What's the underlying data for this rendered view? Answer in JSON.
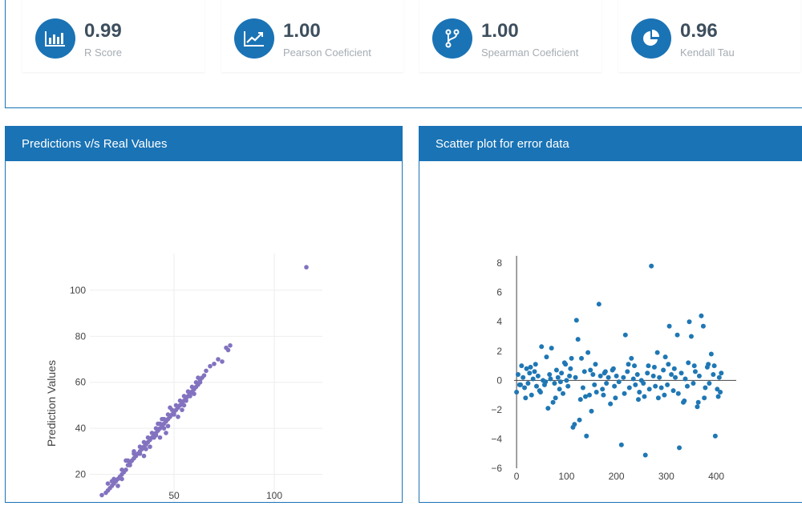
{
  "stats": [
    {
      "value": "0.99",
      "label": "R Score",
      "icon": "bar-chart-icon"
    },
    {
      "value": "1.00",
      "label": "Pearson Coeficient",
      "icon": "line-chart-icon"
    },
    {
      "value": "1.00",
      "label": "Spearman Coeficient",
      "icon": "fork-icon"
    },
    {
      "value": "0.96",
      "label": "Kendall Tau",
      "icon": "pie-chart-icon"
    }
  ],
  "colors": {
    "accent": "#1a73b5",
    "pred_points": "#8272bf",
    "error_points": "#1f77b4"
  },
  "panels": {
    "predictions": {
      "title": "Predictions v/s Real Values"
    },
    "errors": {
      "title": "Scatter plot for error data"
    }
  },
  "chart_data": [
    {
      "type": "scatter",
      "title": "Predictions v/s Real Values",
      "xlabel": "",
      "ylabel": "Prediction Values",
      "xlim": [
        8,
        124
      ],
      "ylim": [
        8,
        116
      ],
      "x_ticks": [
        50,
        100
      ],
      "y_ticks": [
        20,
        40,
        60,
        80,
        100
      ],
      "grid": true,
      "points": [
        [
          116,
          110
        ],
        [
          14,
          11
        ],
        [
          16,
          12
        ],
        [
          17,
          13
        ],
        [
          18,
          14
        ],
        [
          19,
          15
        ],
        [
          20,
          16
        ],
        [
          17,
          16
        ],
        [
          21,
          17
        ],
        [
          22,
          18
        ],
        [
          20,
          18
        ],
        [
          23,
          19
        ],
        [
          24,
          20
        ],
        [
          25,
          21
        ],
        [
          24,
          22
        ],
        [
          26,
          22
        ],
        [
          27,
          24
        ],
        [
          28,
          25
        ],
        [
          27,
          26
        ],
        [
          29,
          26
        ],
        [
          30,
          27
        ],
        [
          31,
          28
        ],
        [
          30,
          29
        ],
        [
          32,
          29
        ],
        [
          33,
          30
        ],
        [
          34,
          31
        ],
        [
          33,
          32
        ],
        [
          35,
          32
        ],
        [
          36,
          33
        ],
        [
          35,
          34
        ],
        [
          37,
          34
        ],
        [
          38,
          35
        ],
        [
          37,
          36
        ],
        [
          39,
          36
        ],
        [
          40,
          37
        ],
        [
          39,
          38
        ],
        [
          41,
          38
        ],
        [
          42,
          39
        ],
        [
          41,
          40
        ],
        [
          43,
          40
        ],
        [
          44,
          41
        ],
        [
          43,
          42
        ],
        [
          45,
          42
        ],
        [
          46,
          43
        ],
        [
          45,
          44
        ],
        [
          47,
          44
        ],
        [
          48,
          45
        ],
        [
          47,
          46
        ],
        [
          49,
          46
        ],
        [
          50,
          47
        ],
        [
          49,
          48
        ],
        [
          51,
          48
        ],
        [
          52,
          49
        ],
        [
          51,
          50
        ],
        [
          53,
          50
        ],
        [
          54,
          51
        ],
        [
          53,
          52
        ],
        [
          55,
          52
        ],
        [
          56,
          53
        ],
        [
          55,
          54
        ],
        [
          57,
          54
        ],
        [
          58,
          55
        ],
        [
          57,
          56
        ],
        [
          59,
          56
        ],
        [
          60,
          57
        ],
        [
          59,
          58
        ],
        [
          61,
          58
        ],
        [
          62,
          59
        ],
        [
          61,
          60
        ],
        [
          63,
          60
        ],
        [
          64,
          62
        ],
        [
          63,
          61
        ],
        [
          65,
          63
        ],
        [
          66,
          65
        ],
        [
          68,
          67
        ],
        [
          70,
          68
        ],
        [
          72,
          70
        ],
        [
          74,
          69
        ],
        [
          76,
          75
        ],
        [
          77,
          74
        ],
        [
          78,
          76
        ],
        [
          26,
          26
        ],
        [
          28,
          24
        ],
        [
          45,
          40
        ],
        [
          48,
          49
        ],
        [
          52,
          45
        ],
        [
          36,
          31
        ],
        [
          40,
          36
        ],
        [
          33,
          29
        ],
        [
          55,
          50
        ],
        [
          58,
          54
        ],
        [
          47,
          41
        ],
        [
          62,
          62
        ],
        [
          44,
          44
        ],
        [
          50,
          46
        ],
        [
          30,
          30
        ],
        [
          41,
          37
        ],
        [
          54,
          48
        ],
        [
          24,
          18
        ],
        [
          46,
          38
        ],
        [
          22,
          15
        ],
        [
          19,
          17
        ],
        [
          56,
          52
        ],
        [
          60,
          55
        ],
        [
          38,
          32
        ],
        [
          42,
          42
        ],
        [
          35,
          28
        ],
        [
          43,
          36
        ]
      ]
    },
    {
      "type": "scatter",
      "title": "Scatter plot for error data",
      "xlabel": "",
      "ylabel": "",
      "xlim": [
        -5,
        440
      ],
      "ylim": [
        -6,
        8.5
      ],
      "x_ticks": [
        0,
        100,
        200,
        300,
        400
      ],
      "y_ticks": [
        -6,
        -4,
        -2,
        0,
        2,
        4,
        6,
        8
      ],
      "grid": false,
      "points": [
        [
          0,
          -0.8
        ],
        [
          3,
          0.4
        ],
        [
          6,
          -0.3
        ],
        [
          10,
          1.0
        ],
        [
          13,
          0.2
        ],
        [
          16,
          -0.5
        ],
        [
          20,
          0.8
        ],
        [
          23,
          -0.2
        ],
        [
          26,
          0.5
        ],
        [
          30,
          -1.0
        ],
        [
          33,
          0.1
        ],
        [
          36,
          0.6
        ],
        [
          40,
          -0.4
        ],
        [
          43,
          0.3
        ],
        [
          46,
          -0.7
        ],
        [
          50,
          2.3
        ],
        [
          53,
          0.0
        ],
        [
          56,
          -0.3
        ],
        [
          60,
          1.6
        ],
        [
          63,
          -1.9
        ],
        [
          66,
          0.4
        ],
        [
          70,
          2.2
        ],
        [
          73,
          -1.5
        ],
        [
          76,
          -0.2
        ],
        [
          80,
          0.7
        ],
        [
          83,
          0.2
        ],
        [
          86,
          -0.6
        ],
        [
          90,
          0.5
        ],
        [
          93,
          -0.9
        ],
        [
          96,
          1.2
        ],
        [
          100,
          0.0
        ],
        [
          103,
          -0.4
        ],
        [
          106,
          0.3
        ],
        [
          110,
          1.5
        ],
        [
          113,
          -3.2
        ],
        [
          116,
          -3.0
        ],
        [
          120,
          4.1
        ],
        [
          123,
          2.8
        ],
        [
          126,
          -2.7
        ],
        [
          130,
          1.5
        ],
        [
          133,
          -0.5
        ],
        [
          136,
          0.6
        ],
        [
          140,
          -3.8
        ],
        [
          143,
          1.9
        ],
        [
          146,
          -1.0
        ],
        [
          150,
          -2.1
        ],
        [
          153,
          0.4
        ],
        [
          156,
          -0.3
        ],
        [
          160,
          -0.8
        ],
        [
          165,
          5.2
        ],
        [
          168,
          0.3
        ],
        [
          172,
          -0.6
        ],
        [
          176,
          0.5
        ],
        [
          180,
          -0.2
        ],
        [
          184,
          0.2
        ],
        [
          188,
          -1.6
        ],
        [
          192,
          0.7
        ],
        [
          196,
          -0.4
        ],
        [
          200,
          0.3
        ],
        [
          205,
          -0.1
        ],
        [
          210,
          -4.4
        ],
        [
          214,
          0.2
        ],
        [
          218,
          3.1
        ],
        [
          222,
          0.6
        ],
        [
          226,
          -0.5
        ],
        [
          230,
          1.5
        ],
        [
          234,
          0.1
        ],
        [
          238,
          -0.3
        ],
        [
          242,
          0.4
        ],
        [
          246,
          -0.8
        ],
        [
          250,
          0.0
        ],
        [
          254,
          -0.2
        ],
        [
          258,
          -5.1
        ],
        [
          262,
          0.5
        ],
        [
          266,
          -0.6
        ],
        [
          270,
          7.8
        ],
        [
          274,
          0.3
        ],
        [
          278,
          -0.4
        ],
        [
          282,
          1.9
        ],
        [
          286,
          0.2
        ],
        [
          290,
          -0.5
        ],
        [
          294,
          0.7
        ],
        [
          298,
          1.6
        ],
        [
          302,
          -0.3
        ],
        [
          306,
          3.7
        ],
        [
          310,
          0.4
        ],
        [
          314,
          -0.7
        ],
        [
          318,
          0.2
        ],
        [
          322,
          3.1
        ],
        [
          326,
          -4.6
        ],
        [
          330,
          0.5
        ],
        [
          334,
          -1.5
        ],
        [
          338,
          0.1
        ],
        [
          342,
          -0.4
        ],
        [
          346,
          4.0
        ],
        [
          350,
          3.0
        ],
        [
          354,
          -0.2
        ],
        [
          358,
          0.6
        ],
        [
          362,
          -1.8
        ],
        [
          366,
          0.3
        ],
        [
          370,
          4.4
        ],
        [
          374,
          3.7
        ],
        [
          378,
          -0.5
        ],
        [
          382,
          0.9
        ],
        [
          386,
          -0.2
        ],
        [
          390,
          1.8
        ],
        [
          394,
          0.4
        ],
        [
          398,
          -3.8
        ],
        [
          402,
          -0.6
        ],
        [
          406,
          0.2
        ],
        [
          410,
          0.5
        ],
        [
          8,
          -0.3
        ],
        [
          28,
          0.9
        ],
        [
          48,
          -0.8
        ],
        [
          68,
          0.1
        ],
        [
          88,
          -0.1
        ],
        [
          108,
          0.8
        ],
        [
          128,
          -1.3
        ],
        [
          148,
          0.7
        ],
        [
          174,
          -1.0
        ],
        [
          194,
          0.8
        ],
        [
          216,
          -0.9
        ],
        [
          236,
          1.0
        ],
        [
          256,
          -1.1
        ],
        [
          276,
          0.9
        ],
        [
          296,
          -1.0
        ],
        [
          316,
          0.8
        ],
        [
          336,
          -1.4
        ],
        [
          356,
          1.0
        ],
        [
          376,
          -1.2
        ],
        [
          396,
          1.0
        ],
        [
          404,
          -1.1
        ],
        [
          18,
          -1.2
        ],
        [
          38,
          1.1
        ],
        [
          58,
          -0.1
        ],
        [
          78,
          -1.2
        ],
        [
          98,
          1.1
        ],
        [
          118,
          0.2
        ],
        [
          138,
          -1.1
        ],
        [
          158,
          1.1
        ],
        [
          178,
          0.6
        ],
        [
          198,
          -1.2
        ],
        [
          224,
          1.1
        ],
        [
          244,
          -1.3
        ],
        [
          264,
          1.0
        ],
        [
          284,
          -1.2
        ],
        [
          304,
          1.1
        ],
        [
          324,
          -0.9
        ],
        [
          344,
          1.2
        ],
        [
          364,
          -1.5
        ],
        [
          384,
          1.1
        ],
        [
          408,
          -0.8
        ]
      ]
    }
  ]
}
